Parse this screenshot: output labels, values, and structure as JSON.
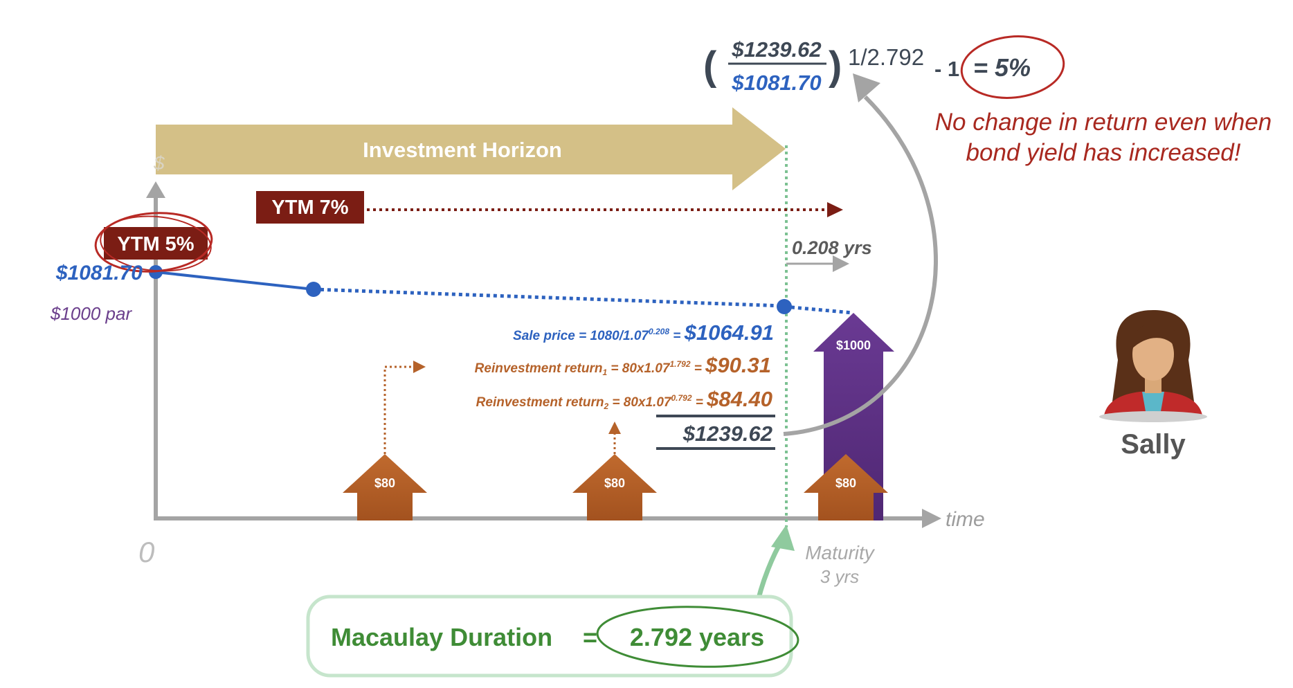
{
  "formula": {
    "open_paren": "(",
    "numerator": "$1239.62",
    "denominator": "$1081.70",
    "close_paren": ")",
    "exponent": "1/2.792",
    "minus_one": "- 1",
    "result": "= 5%"
  },
  "note": {
    "line1": "No change in return even when",
    "line2": "bond yield has increased!"
  },
  "horizon": {
    "label": "Investment Horizon"
  },
  "axis": {
    "y_label": "$",
    "x_label": "time",
    "origin": "0",
    "maturity_label": "Maturity",
    "maturity_years": "3 yrs"
  },
  "ytm_initial": {
    "label": "YTM 5%"
  },
  "ytm_new": {
    "label": "YTM 7%"
  },
  "price": {
    "initial": "$1081.70",
    "par": "$1000 par"
  },
  "gap": {
    "label": "0.208 yrs"
  },
  "sale": {
    "prefix": "Sale price = 1080/1.07",
    "exp": "0.208",
    "equals": " = ",
    "value": "$1064.91"
  },
  "reinvest1": {
    "prefix": "Reinvestment return",
    "sub": "1",
    "mid": " = 80x1.07",
    "exp": "1.792",
    "equals": " = ",
    "value": "$90.31"
  },
  "reinvest2": {
    "prefix": "Reinvestment return",
    "sub": "2",
    "mid": " = 80x1.07",
    "exp": "0.792",
    "equals": " = ",
    "value": "$84.40"
  },
  "total": {
    "value": "$1239.62"
  },
  "coupons": [
    "$80",
    "$80",
    "$80"
  ],
  "principal": {
    "label": "$1000"
  },
  "investor": {
    "name": "Sally"
  },
  "duration": {
    "label": "Macaulay Duration",
    "equals": "=",
    "value": "2.792 years"
  },
  "colors": {
    "dark_red": "#7b1d14",
    "blue": "#2d62bf",
    "orange": "#b5622a",
    "purple": "#5f3285",
    "gold": "#d4c087",
    "green": "#3f8c36",
    "gray": "#a4a4a4",
    "navy_text": "#3e4855"
  }
}
